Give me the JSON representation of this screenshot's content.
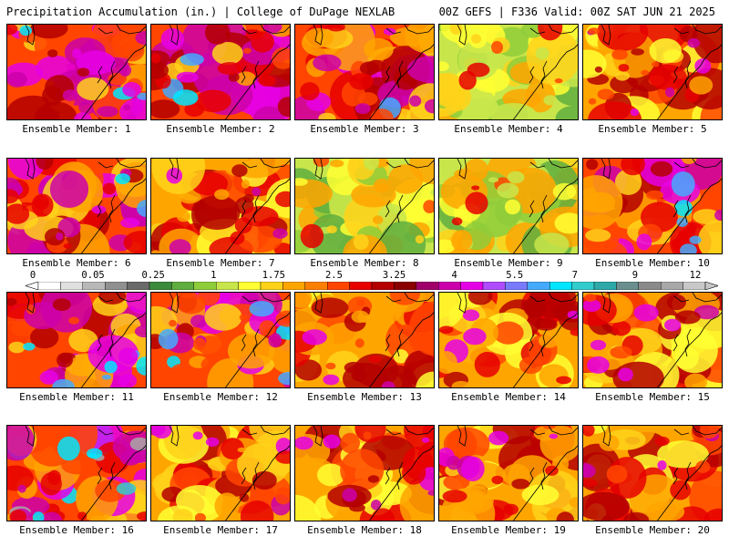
{
  "header": {
    "title": "Precipitation Accumulation (in.) | College of DuPage NEXLAB",
    "model_info": "00Z GEFS | F336 Valid: 00Z SAT JUN 21 2025"
  },
  "panels": [
    {
      "member": 1,
      "label": "Ensemble Member: 1",
      "max_shade": "cyan"
    },
    {
      "member": 2,
      "label": "Ensemble Member: 2",
      "max_shade": "cyan"
    },
    {
      "member": 3,
      "label": "Ensemble Member: 3",
      "max_shade": "cyan"
    },
    {
      "member": 4,
      "label": "Ensemble Member: 4",
      "max_shade": "red"
    },
    {
      "member": 5,
      "label": "Ensemble Member: 5",
      "max_shade": "magenta"
    },
    {
      "member": 6,
      "label": "Ensemble Member: 6",
      "max_shade": "cyan"
    },
    {
      "member": 7,
      "label": "Ensemble Member: 7",
      "max_shade": "magenta"
    },
    {
      "member": 8,
      "label": "Ensemble Member: 8",
      "max_shade": "red"
    },
    {
      "member": 9,
      "label": "Ensemble Member: 9",
      "max_shade": "red"
    },
    {
      "member": 10,
      "label": "Ensemble Member: 10",
      "max_shade": "cyan"
    },
    {
      "member": 11,
      "label": "Ensemble Member: 11",
      "max_shade": "cyan"
    },
    {
      "member": 12,
      "label": "Ensemble Member: 12",
      "max_shade": "cyan"
    },
    {
      "member": 13,
      "label": "Ensemble Member: 13",
      "max_shade": "magenta"
    },
    {
      "member": 14,
      "label": "Ensemble Member: 14",
      "max_shade": "magenta"
    },
    {
      "member": 15,
      "label": "Ensemble Member: 15",
      "max_shade": "magenta"
    },
    {
      "member": 16,
      "label": "Ensemble Member: 16",
      "max_shade": "gray"
    },
    {
      "member": 17,
      "label": "Ensemble Member: 17",
      "max_shade": "magenta"
    },
    {
      "member": 18,
      "label": "Ensemble Member: 18",
      "max_shade": "magenta"
    },
    {
      "member": 19,
      "label": "Ensemble Member: 19",
      "max_shade": "magenta"
    },
    {
      "member": 20,
      "label": "Ensemble Member: 20",
      "max_shade": "magenta"
    }
  ],
  "colorbar": {
    "tick_labels": [
      "0",
      "0.05",
      "0.25",
      "1",
      "1.75",
      "2.5",
      "3.25",
      "4",
      "5.5",
      "7",
      "9",
      "12"
    ],
    "colors": [
      "#ffffff",
      "#e0e0e0",
      "#b8b8b8",
      "#909090",
      "#6a6a6a",
      "#3c8a3c",
      "#5fae3f",
      "#8fcc3a",
      "#c8e64b",
      "#ffff33",
      "#ffd21a",
      "#ffa500",
      "#ff7f00",
      "#ff4500",
      "#e60000",
      "#b40000",
      "#8b0000",
      "#a0006a",
      "#cc00aa",
      "#e600e6",
      "#b04cff",
      "#7a7aff",
      "#44aaff",
      "#00e6ff",
      "#33cccc",
      "#2ea8a8",
      "#6b8f8f",
      "#8a8a8a",
      "#a8a8a8",
      "#c8c8c8"
    ]
  }
}
